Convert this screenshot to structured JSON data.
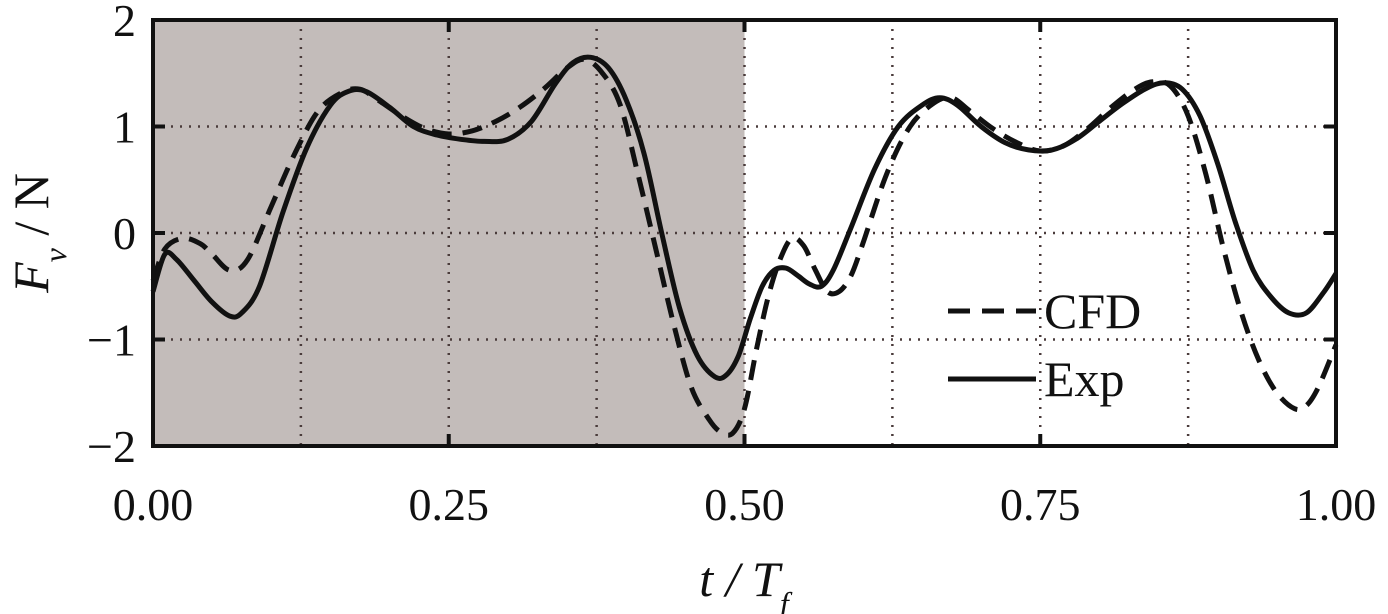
{
  "chart_data": {
    "type": "line",
    "xlabel": "t / T_f",
    "ylabel": "F_v / N",
    "xlim": [
      0,
      1
    ],
    "ylim": [
      -2,
      2
    ],
    "x_ticks": [
      0,
      0.25,
      0.5,
      0.75,
      1.0
    ],
    "x_tick_labels": [
      "0.00",
      "0.25",
      "0.50",
      "0.75",
      "1.00"
    ],
    "y_ticks": [
      -2,
      -1,
      0,
      1,
      2
    ],
    "y_tick_labels": [
      "−2",
      "−1",
      "0",
      "1",
      "2"
    ],
    "grid": true,
    "grid_x": [
      0.125,
      0.25,
      0.375,
      0.5,
      0.625,
      0.75,
      0.875
    ],
    "grid_y": [
      -1,
      0,
      1
    ],
    "shaded_region": {
      "x": [
        0,
        0.5
      ],
      "color": "#c3bcba"
    },
    "legend_position": "bottom-right",
    "series": [
      {
        "name": "CFD",
        "style": "dashed",
        "color": "#111111",
        "x": [
          0.0,
          0.01,
          0.025,
          0.04,
          0.05,
          0.065,
          0.08,
          0.1,
          0.12,
          0.14,
          0.16,
          0.175,
          0.19,
          0.21,
          0.23,
          0.25,
          0.27,
          0.29,
          0.31,
          0.33,
          0.35,
          0.365,
          0.38,
          0.395,
          0.41,
          0.425,
          0.44,
          0.455,
          0.47,
          0.48,
          0.49,
          0.5,
          0.51,
          0.52,
          0.53,
          0.54,
          0.55,
          0.56,
          0.57,
          0.58,
          0.59,
          0.6,
          0.62,
          0.64,
          0.66,
          0.675,
          0.69,
          0.71,
          0.73,
          0.75,
          0.77,
          0.79,
          0.81,
          0.83,
          0.845,
          0.86,
          0.875,
          0.89,
          0.905,
          0.92,
          0.935,
          0.95,
          0.965,
          0.975,
          0.985,
          1.0
        ],
        "y": [
          -0.45,
          -0.15,
          -0.05,
          -0.1,
          -0.2,
          -0.35,
          -0.25,
          0.25,
          0.75,
          1.15,
          1.32,
          1.35,
          1.25,
          1.1,
          0.98,
          0.93,
          0.96,
          1.05,
          1.18,
          1.35,
          1.55,
          1.63,
          1.5,
          1.2,
          0.55,
          -0.15,
          -0.85,
          -1.45,
          -1.75,
          -1.87,
          -1.88,
          -1.65,
          -1.1,
          -0.6,
          -0.25,
          -0.05,
          -0.12,
          -0.35,
          -0.55,
          -0.55,
          -0.4,
          -0.1,
          0.55,
          1.0,
          1.22,
          1.27,
          1.15,
          0.98,
          0.85,
          0.77,
          0.82,
          0.98,
          1.18,
          1.35,
          1.42,
          1.38,
          1.1,
          0.55,
          -0.15,
          -0.75,
          -1.2,
          -1.5,
          -1.65,
          -1.62,
          -1.45,
          -1.05
        ]
      },
      {
        "name": "Exp",
        "style": "solid",
        "color": "#111111",
        "x": [
          0.0,
          0.01,
          0.02,
          0.035,
          0.05,
          0.065,
          0.075,
          0.09,
          0.11,
          0.13,
          0.15,
          0.165,
          0.18,
          0.2,
          0.22,
          0.24,
          0.26,
          0.28,
          0.3,
          0.32,
          0.34,
          0.355,
          0.37,
          0.385,
          0.4,
          0.415,
          0.43,
          0.445,
          0.46,
          0.475,
          0.485,
          0.495,
          0.505,
          0.515,
          0.525,
          0.535,
          0.545,
          0.555,
          0.565,
          0.575,
          0.59,
          0.61,
          0.63,
          0.65,
          0.665,
          0.68,
          0.7,
          0.72,
          0.74,
          0.76,
          0.78,
          0.8,
          0.82,
          0.84,
          0.855,
          0.87,
          0.885,
          0.9,
          0.915,
          0.93,
          0.945,
          0.96,
          0.975,
          0.99,
          1.0
        ],
        "y": [
          -0.55,
          -0.2,
          -0.25,
          -0.45,
          -0.65,
          -0.78,
          -0.75,
          -0.5,
          0.2,
          0.8,
          1.2,
          1.33,
          1.33,
          1.18,
          1.0,
          0.92,
          0.88,
          0.86,
          0.88,
          1.05,
          1.4,
          1.6,
          1.65,
          1.55,
          1.25,
          0.75,
          0.0,
          -0.7,
          -1.15,
          -1.35,
          -1.33,
          -1.15,
          -0.8,
          -0.5,
          -0.35,
          -0.33,
          -0.4,
          -0.48,
          -0.5,
          -0.35,
          0.05,
          0.6,
          1.0,
          1.2,
          1.27,
          1.2,
          1.0,
          0.85,
          0.78,
          0.78,
          0.88,
          1.05,
          1.22,
          1.36,
          1.41,
          1.35,
          1.1,
          0.65,
          0.1,
          -0.35,
          -0.6,
          -0.75,
          -0.75,
          -0.55,
          -0.38
        ]
      }
    ]
  }
}
